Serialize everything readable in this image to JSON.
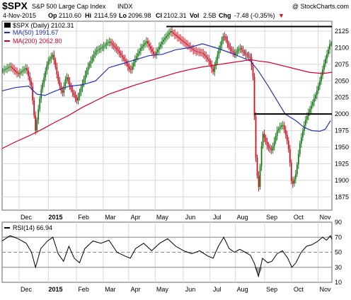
{
  "header": {
    "symbol": "$SPX",
    "name": "S&P 500 Large Cap Index",
    "exchange": "INDX",
    "watermark": "@ StockCharts.com",
    "date": "4-Nov-2015",
    "op_label": "Op",
    "op": "2110.60",
    "hi_label": "Hi",
    "hi": "2114.59",
    "lo_label": "Lo",
    "lo": "2096.98",
    "cl_label": "Cl",
    "cl": "2102.31",
    "vol_label": "Vol",
    "vol": "2.5B",
    "chg_label": "Chg",
    "chg": "-7.48 (-0.35%)",
    "chg_marker": "▼"
  },
  "legend": {
    "price": "$SPX (Daily) 2102.31",
    "ma50": "MA(50) 1991.67",
    "ma200": "MA(200) 2062.80"
  },
  "rsi_legend": "RSI(14) 66.94",
  "colors": {
    "candle_up": "#1a7a1a",
    "candle_down": "#cc1122",
    "ma50": "#2233aa",
    "ma200": "#cc0033",
    "grid": "#d8d8d8",
    "rsi_line": "#000000",
    "rsi_fill": "#888888",
    "marker": "#000000"
  },
  "chart_data": [
    {
      "type": "candlestick",
      "title": "$SPX S&P 500 Large Cap Index INDX",
      "ylim": [
        1855,
        2140
      ],
      "y_ticks": [
        1875,
        1900,
        1925,
        1950,
        1975,
        2000,
        2025,
        2050,
        2075,
        2100,
        2125
      ],
      "x_labels": [
        "Dec",
        "2015",
        "Feb",
        "Mar",
        "Apr",
        "May",
        "Jun",
        "Jul",
        "Aug",
        "Sep",
        "Oct",
        "Nov"
      ],
      "x_label_positions": [
        0.9,
        2.0,
        3.05,
        4.05,
        5.0,
        6.0,
        7.05,
        8.05,
        9.0,
        10.1,
        11.1,
        12.1
      ],
      "x_range": [
        0,
        12.35
      ],
      "resistance_level": 2132,
      "resistance_range": [
        6.15,
        12.35
      ],
      "support_level": 2000,
      "support_range": [
        9.45,
        12.35
      ],
      "price_path": [
        [
          0,
          2065
        ],
        [
          0.3,
          2072
        ],
        [
          0.6,
          2060
        ],
        [
          0.9,
          2070
        ],
        [
          1.1,
          2040
        ],
        [
          1.25,
          1975
        ],
        [
          1.45,
          2035
        ],
        [
          1.7,
          2078
        ],
        [
          1.9,
          2090
        ],
        [
          2.1,
          2050
        ],
        [
          2.25,
          2030
        ],
        [
          2.4,
          2058
        ],
        [
          2.6,
          2035
        ],
        [
          2.8,
          2020
        ],
        [
          3.0,
          2045
        ],
        [
          3.2,
          2070
        ],
        [
          3.5,
          2095
        ],
        [
          3.8,
          2102
        ],
        [
          4.0,
          2110
        ],
        [
          4.3,
          2097
        ],
        [
          4.6,
          2080
        ],
        [
          4.8,
          2065
        ],
        [
          5.0,
          2085
        ],
        [
          5.2,
          2100
        ],
        [
          5.4,
          2110
        ],
        [
          5.7,
          2088
        ],
        [
          6.0,
          2110
        ],
        [
          6.3,
          2125
        ],
        [
          6.6,
          2115
        ],
        [
          6.9,
          2105
        ],
        [
          7.2,
          2095
        ],
        [
          7.5,
          2092
        ],
        [
          7.75,
          2080
        ],
        [
          7.9,
          2063
        ],
        [
          8.1,
          2095
        ],
        [
          8.3,
          2120
        ],
        [
          8.5,
          2100
        ],
        [
          8.7,
          2090
        ],
        [
          8.9,
          2100
        ],
        [
          9.1,
          2090
        ],
        [
          9.3,
          2085
        ],
        [
          9.4,
          2055
        ],
        [
          9.5,
          1935
        ],
        [
          9.6,
          1885
        ],
        [
          9.75,
          1972
        ],
        [
          9.95,
          1950
        ],
        [
          10.1,
          1945
        ],
        [
          10.3,
          1975
        ],
        [
          10.5,
          1985
        ],
        [
          10.65,
          1965
        ],
        [
          10.75,
          1942
        ],
        [
          10.85,
          1890
        ],
        [
          11.0,
          1910
        ],
        [
          11.15,
          1955
        ],
        [
          11.35,
          1990
        ],
        [
          11.55,
          2010
        ],
        [
          11.75,
          2030
        ],
        [
          11.9,
          2050
        ],
        [
          12.05,
          2075
        ],
        [
          12.2,
          2095
        ],
        [
          12.3,
          2110
        ],
        [
          12.35,
          2102
        ]
      ],
      "series": [
        {
          "name": "MA(50) 1991.67",
          "points": [
            [
              0,
              2035
            ],
            [
              0.5,
              2040
            ],
            [
              1.0,
              2042
            ],
            [
              1.3,
              2030
            ],
            [
              1.6,
              2028
            ],
            [
              2.0,
              2035
            ],
            [
              2.5,
              2042
            ],
            [
              3.0,
              2044
            ],
            [
              3.5,
              2050
            ],
            [
              4.0,
              2070
            ],
            [
              4.5,
              2076
            ],
            [
              5.0,
              2082
            ],
            [
              5.5,
              2088
            ],
            [
              6.0,
              2090
            ],
            [
              6.5,
              2097
            ],
            [
              7.0,
              2100
            ],
            [
              7.5,
              2106
            ],
            [
              8.0,
              2100
            ],
            [
              8.5,
              2093
            ],
            [
              9.0,
              2085
            ],
            [
              9.3,
              2080
            ],
            [
              9.6,
              2065
            ],
            [
              10.0,
              2040
            ],
            [
              10.3,
              2020
            ],
            [
              10.6,
              2000
            ],
            [
              11.0,
              1990
            ],
            [
              11.3,
              1980
            ],
            [
              11.6,
              1975
            ],
            [
              11.9,
              1974
            ],
            [
              12.1,
              1977
            ],
            [
              12.3,
              1990
            ]
          ]
        },
        {
          "name": "MA(200) 2062.80",
          "points": [
            [
              0,
              1948
            ],
            [
              0.5,
              1958
            ],
            [
              1.0,
              1967
            ],
            [
              1.5,
              1977
            ],
            [
              2.0,
              1988
            ],
            [
              2.5,
              1998
            ],
            [
              3.0,
              2010
            ],
            [
              3.5,
              2020
            ],
            [
              4.0,
              2030
            ],
            [
              4.5,
              2037
            ],
            [
              5.0,
              2044
            ],
            [
              5.5,
              2050
            ],
            [
              6.0,
              2056
            ],
            [
              6.5,
              2062
            ],
            [
              7.0,
              2067
            ],
            [
              7.5,
              2071
            ],
            [
              8.0,
              2074
            ],
            [
              8.5,
              2077
            ],
            [
              9.0,
              2080
            ],
            [
              9.3,
              2082
            ],
            [
              9.6,
              2080
            ],
            [
              10.0,
              2078
            ],
            [
              10.5,
              2073
            ],
            [
              11.0,
              2068
            ],
            [
              11.5,
              2063
            ],
            [
              12.0,
              2061
            ],
            [
              12.35,
              2063
            ]
          ]
        }
      ]
    },
    {
      "type": "line",
      "title": "RSI(14) 66.94",
      "ylim": [
        10,
        90
      ],
      "y_ticks": [
        10,
        30,
        50,
        70,
        90
      ],
      "reference_lines": [
        30,
        50,
        70
      ],
      "x_labels": [
        "Dec",
        "2015",
        "Feb",
        "Mar",
        "Apr",
        "May",
        "Jun",
        "Jul",
        "Aug",
        "Sep",
        "Oct",
        "Nov"
      ],
      "series": [
        {
          "name": "RSI(14) 66.94",
          "points": [
            [
              0,
              65
            ],
            [
              0.3,
              72
            ],
            [
              0.6,
              68
            ],
            [
              0.9,
              62
            ],
            [
              1.1,
              50
            ],
            [
              1.25,
              30
            ],
            [
              1.45,
              55
            ],
            [
              1.7,
              65
            ],
            [
              1.9,
              70
            ],
            [
              2.1,
              48
            ],
            [
              2.3,
              38
            ],
            [
              2.5,
              58
            ],
            [
              2.7,
              42
            ],
            [
              2.9,
              36
            ],
            [
              3.1,
              55
            ],
            [
              3.4,
              65
            ],
            [
              3.7,
              62
            ],
            [
              4.0,
              66
            ],
            [
              4.3,
              50
            ],
            [
              4.6,
              45
            ],
            [
              4.8,
              42
            ],
            [
              5.0,
              55
            ],
            [
              5.3,
              62
            ],
            [
              5.6,
              52
            ],
            [
              5.9,
              62
            ],
            [
              6.2,
              68
            ],
            [
              6.5,
              58
            ],
            [
              6.8,
              52
            ],
            [
              7.1,
              48
            ],
            [
              7.4,
              52
            ],
            [
              7.7,
              45
            ],
            [
              7.9,
              42
            ],
            [
              8.1,
              58
            ],
            [
              8.3,
              70
            ],
            [
              8.5,
              55
            ],
            [
              8.7,
              50
            ],
            [
              8.9,
              54
            ],
            [
              9.1,
              50
            ],
            [
              9.3,
              46
            ],
            [
              9.45,
              35
            ],
            [
              9.6,
              18
            ],
            [
              9.75,
              42
            ],
            [
              9.95,
              36
            ],
            [
              10.1,
              38
            ],
            [
              10.3,
              48
            ],
            [
              10.5,
              52
            ],
            [
              10.7,
              42
            ],
            [
              10.85,
              30
            ],
            [
              11.0,
              36
            ],
            [
              11.2,
              50
            ],
            [
              11.4,
              58
            ],
            [
              11.6,
              60
            ],
            [
              11.8,
              64
            ],
            [
              12.0,
              70
            ],
            [
              12.15,
              66
            ],
            [
              12.3,
              72
            ],
            [
              12.35,
              67
            ]
          ]
        }
      ]
    }
  ]
}
